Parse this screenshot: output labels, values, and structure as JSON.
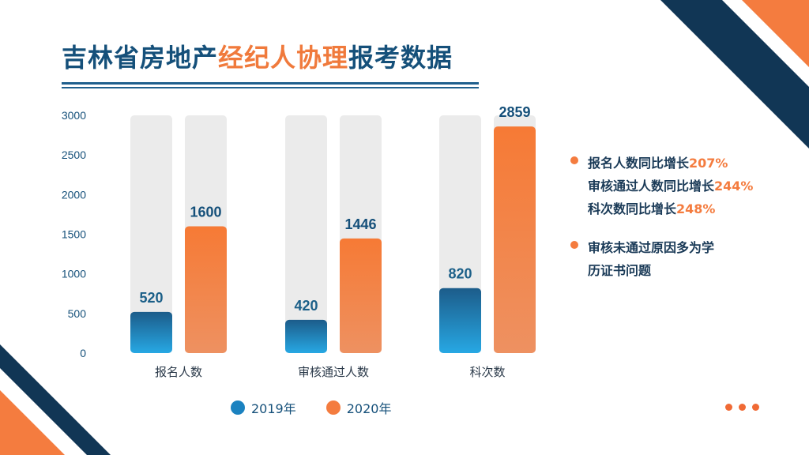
{
  "title": {
    "part1": "吉林省房地产",
    "part2": "经纪人协理",
    "part3": "报考数据"
  },
  "chart_data": {
    "type": "bar",
    "categories": [
      "报名人数",
      "审核通过人数",
      "科次数"
    ],
    "series": [
      {
        "name": "2019年",
        "values": [
          520,
          420,
          820
        ],
        "color": "#1b82c0"
      },
      {
        "name": "2020年",
        "values": [
          1600,
          1446,
          2859
        ],
        "color": "#f47c3f"
      }
    ],
    "ylim": [
      0,
      3000
    ],
    "yticks": [
      0,
      500,
      1000,
      1500,
      2000,
      2500,
      3000
    ],
    "legend_position": "bottom",
    "grid": false
  },
  "notes": [
    {
      "lines": [
        {
          "text": "报名人数同比增长",
          "pct": "207%"
        },
        {
          "text": "审核通过人数同比增长",
          "pct": "244%"
        },
        {
          "text": "科次数同比增长",
          "pct": "248%"
        }
      ]
    },
    {
      "lines": [
        {
          "text": "审核未通过原因多为学",
          "pct": ""
        },
        {
          "text": "历证书问题",
          "pct": ""
        }
      ]
    }
  ],
  "colors": {
    "navy": "#113655",
    "orange": "#f47c3f",
    "blue": "#1b82c0",
    "track": "#ebebeb"
  }
}
